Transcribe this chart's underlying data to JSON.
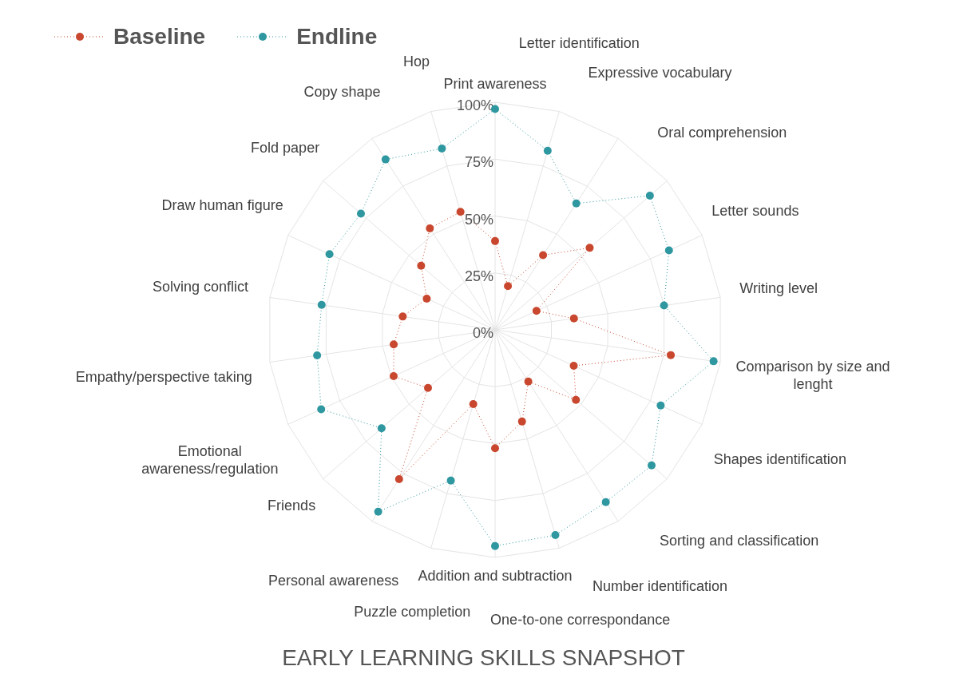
{
  "chart_data": {
    "type": "radar",
    "title": "EARLY LEARNING SKILLS SNAPSHOT",
    "categories": [
      "Print awareness",
      "Letter identification",
      "Expressive vocabulary",
      "Oral comprehension",
      "Letter sounds",
      "Writing level",
      "Comparison by size and lenght",
      "Shapes identification",
      "Sorting and classification",
      "Number identification",
      "One-to-one correspondance",
      "Addition and subtraction",
      "Puzzle completion",
      "Personal awareness",
      "Friends",
      "Emotional awareness/regulation",
      "Empathy/perspective taking",
      "Solving conflict",
      "Draw human figure",
      "Fold paper",
      "Copy shape",
      "Hop"
    ],
    "series": [
      {
        "name": "Baseline",
        "color": "#c8472e",
        "values": [
          39,
          20,
          39,
          55,
          20,
          35,
          78,
          38,
          47,
          27,
          42,
          52,
          34,
          78,
          39,
          49,
          45,
          41,
          33,
          43,
          53,
          54
        ]
      },
      {
        "name": "Endline",
        "color": "#2e97a0",
        "values": [
          97,
          82,
          66,
          90,
          84,
          75,
          97,
          80,
          91,
          90,
          94,
          95,
          69,
          95,
          66,
          84,
          79,
          77,
          80,
          78,
          89,
          83
        ]
      }
    ],
    "ylim": [
      0,
      100
    ],
    "yticks": [
      {
        "value": 0,
        "label": "0%"
      },
      {
        "value": 25,
        "label": "25%"
      },
      {
        "value": 50,
        "label": "50%"
      },
      {
        "value": 75,
        "label": "75%"
      },
      {
        "value": 100,
        "label": "100%"
      }
    ],
    "grid": true,
    "legend": "top left",
    "marker": "circle",
    "line_style": "dotted"
  }
}
